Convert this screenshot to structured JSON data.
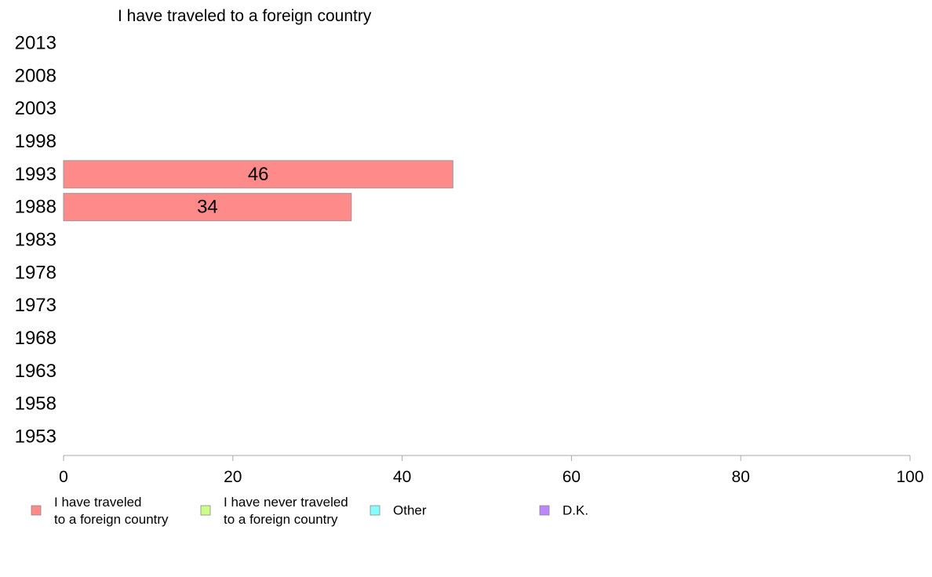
{
  "chart_data": {
    "type": "bar",
    "orientation": "horizontal",
    "title": "I have traveled to a foreign country",
    "categories": [
      "2013",
      "2008",
      "2003",
      "1998",
      "1993",
      "1988",
      "1983",
      "1978",
      "1973",
      "1968",
      "1963",
      "1958",
      "1953"
    ],
    "series": [
      {
        "name": "I have traveled\nto a foreign country",
        "color": "#ff8a8a",
        "values": [
          null,
          null,
          null,
          null,
          46,
          34,
          null,
          null,
          null,
          null,
          null,
          null,
          null
        ]
      }
    ],
    "xlim": [
      0,
      100
    ],
    "xticks": [
      "0",
      "20",
      "40",
      "60",
      "80",
      "100"
    ],
    "grid": false,
    "legend_position": "bottom",
    "legend": [
      {
        "label": "I have traveled\nto a foreign country",
        "color": "#ff8a8a"
      },
      {
        "label": "I have never traveled\nto a foreign country",
        "color": "#ccff88"
      },
      {
        "label": "Other",
        "color": "#88ffff"
      },
      {
        "label": "D.K.",
        "color": "#bb88ff"
      }
    ]
  }
}
